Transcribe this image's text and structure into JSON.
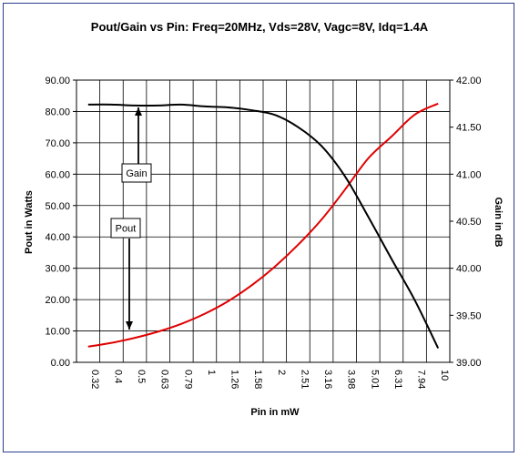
{
  "chart_data": {
    "type": "line",
    "title": "Pout/Gain vs Pin: Freq=20MHz, Vds=28V, Vagc=8V, Idq=1.4A",
    "xlabel": "Pin in mW",
    "ylabel_left": "Pout in Watts",
    "ylabel_right": "Gain in dB",
    "x_categories": [
      "0.32",
      "0.4",
      "0.5",
      "0.63",
      "0.79",
      "1",
      "1.26",
      "1.58",
      "2",
      "2.51",
      "3.16",
      "3.98",
      "5.01",
      "6.31",
      "7.94",
      "10"
    ],
    "y_left": {
      "min": 0,
      "max": 90,
      "ticks": [
        "0.00",
        "10.00",
        "20.00",
        "30.00",
        "40.00",
        "50.00",
        "60.00",
        "70.00",
        "80.00",
        "90.00"
      ]
    },
    "y_right": {
      "min": 39.0,
      "max": 42.0,
      "ticks": [
        "39.00",
        "39.50",
        "40.00",
        "40.50",
        "41.00",
        "41.50",
        "42.00"
      ]
    },
    "grid": true,
    "series": [
      {
        "name": "Pout",
        "axis": "left",
        "color": "#e00000",
        "x": [
          "0.32",
          "0.4",
          "0.5",
          "0.63",
          "0.79",
          "1",
          "1.26",
          "1.58",
          "2",
          "2.51",
          "3.16",
          "3.98",
          "5.01",
          "6.31",
          "7.94",
          "10"
        ],
        "values": [
          5.0,
          6.2,
          7.8,
          9.8,
          12.3,
          15.5,
          19.5,
          24.5,
          30.5,
          37.5,
          45.5,
          55.0,
          65.0,
          72.0,
          79.0,
          82.5
        ]
      },
      {
        "name": "Gain",
        "axis": "right",
        "color": "#000000",
        "x": [
          "0.32",
          "0.4",
          "0.5",
          "0.63",
          "0.79",
          "1",
          "1.26",
          "1.58",
          "2",
          "2.51",
          "3.16",
          "3.98",
          "5.01",
          "6.31",
          "7.94",
          "10"
        ],
        "values": [
          41.74,
          41.74,
          41.73,
          41.73,
          41.74,
          41.72,
          41.71,
          41.68,
          41.63,
          41.5,
          41.3,
          40.98,
          40.55,
          40.1,
          39.66,
          39.15
        ]
      }
    ],
    "annotations": [
      {
        "text": "Gain",
        "series": "Gain"
      },
      {
        "text": "Pout",
        "series": "Pout"
      }
    ]
  }
}
